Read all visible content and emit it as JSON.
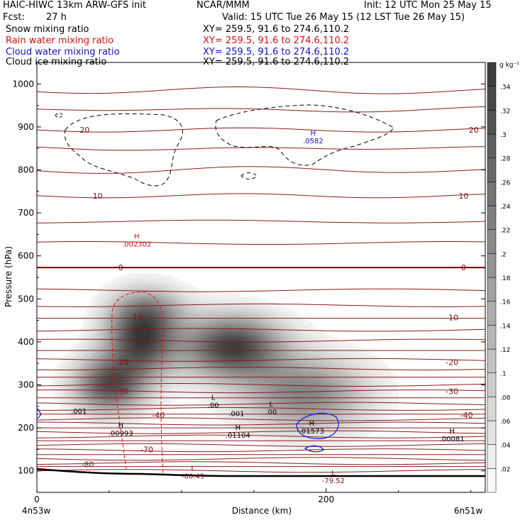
{
  "header": {
    "model": "HAIC-HIWC 13km ARW-GFS init",
    "org": "NCAR/MMM",
    "init": "Init: 12 UTC Mon 25 May 15",
    "fcst_label": "Fcst:",
    "fcst_value": "27 h",
    "valid": "Valid: 15 UTC Tue 26 May 15 (12 LST Tue 26 May 15)",
    "fields": [
      {
        "name": "Snow mixing ratio",
        "xy": "XY= 259.5, 91.6 to 274.6,110.2",
        "color": "#000000"
      },
      {
        "name": "Rain water mixing ratio",
        "xy": "XY= 259.5, 91.6 to 274.6,110.2",
        "color": "#dd1111"
      },
      {
        "name": "Cloud water mixing ratio",
        "xy": "XY= 259.5, 91.6 to 274.6,110.2",
        "color": "#1111cc"
      },
      {
        "name": "Cloud ice mixing ratio",
        "xy": "XY= 259.5, 91.6 to 274.6,110.2",
        "color": "#000000"
      }
    ]
  },
  "chart_data": {
    "type": "heatmap",
    "title": "HAIC-HIWC 13km ARW-GFS init",
    "xlabel": "Distance (km)",
    "ylabel": "Pressure (hPa)",
    "xlim": [
      0,
      310
    ],
    "ylim": [
      1050,
      50
    ],
    "x_ticks": [
      0,
      200
    ],
    "y_ticks": [
      100,
      200,
      300,
      400,
      500,
      600,
      700,
      800,
      900,
      1000
    ],
    "x_endpoint_labels": [
      "4n53w",
      "6n51w"
    ],
    "colorbar": {
      "unit": "g kg⁻¹",
      "ticks": [
        0.02,
        0.04,
        0.06,
        0.08,
        0.1,
        0.12,
        0.14,
        0.16,
        0.18,
        0.2,
        0.22,
        0.24,
        0.26,
        0.28,
        0.3,
        0.32,
        0.34
      ],
      "tick_labels": [
        ".02",
        ".04",
        ".06",
        ".08",
        ".1",
        ".12",
        ".14",
        ".16",
        ".18",
        ".2",
        ".22",
        ".24",
        ".26",
        ".28",
        ".3",
        ".32",
        ".34"
      ],
      "range": [
        0,
        0.36
      ]
    },
    "snow_blobs": [
      {
        "x": 50,
        "p": 300,
        "amp": 0.3,
        "sx": 17,
        "sp": 45
      },
      {
        "x": 72,
        "p": 410,
        "amp": 0.34,
        "sx": 17,
        "sp": 60
      },
      {
        "x": 135,
        "p": 390,
        "amp": 0.34,
        "sx": 24,
        "sp": 50
      },
      {
        "x": 185,
        "p": 280,
        "amp": 0.22,
        "sx": 30,
        "sp": 60
      },
      {
        "x": 80,
        "p": 480,
        "amp": 0.1,
        "sx": 18,
        "sp": 35
      }
    ],
    "temperature_isotherms": [
      {
        "label": "-80",
        "p": 115,
        "label_x": 35
      },
      {
        "label": "-70",
        "p": 150,
        "label_x": 76
      },
      {
        "label": "-40",
        "p": 230,
        "label_x": 84
      },
      {
        "label": "-40",
        "p": 230,
        "label_x": 297
      },
      {
        "label": "-30",
        "p": 285,
        "label_x": 59
      },
      {
        "label": "-30",
        "p": 285,
        "label_x": 287
      },
      {
        "label": "-20",
        "p": 353,
        "label_x": 59
      },
      {
        "label": "-20",
        "p": 353,
        "label_x": 287
      },
      {
        "label": "-10",
        "p": 457,
        "label_x": 69
      },
      {
        "label": "-10",
        "p": 457,
        "label_x": 287
      },
      {
        "label": "0",
        "p": 573,
        "label_x": 58
      },
      {
        "label": "0",
        "p": 573,
        "label_x": 295
      },
      {
        "label": "10",
        "p": 740,
        "label_x": 42
      },
      {
        "label": "10",
        "p": 740,
        "label_x": 295
      },
      {
        "label": "20",
        "p": 893,
        "label_x": 33
      },
      {
        "label": "20",
        "p": 893,
        "label_x": 302
      }
    ],
    "extrema": [
      {
        "kind": "L",
        "value": "-80.49",
        "x": 108,
        "p": 100,
        "color": "#7a1010"
      },
      {
        "kind": "L",
        "value": "-79.52",
        "x": 205,
        "p": 90,
        "color": "#7a1010"
      },
      {
        "kind": "H",
        "value": ".00993",
        "x": 58,
        "p": 200,
        "color": "#000000"
      },
      {
        "kind": "H",
        "value": ".01104",
        "x": 139,
        "p": 195,
        "color": "#000000"
      },
      {
        "kind": "H",
        "value": ".01573",
        "x": 190,
        "p": 205,
        "color": "#000000"
      },
      {
        "kind": "H",
        "value": ".00081",
        "x": 287,
        "p": 187,
        "color": "#000000"
      },
      {
        "kind": "L",
        "value": ".00",
        "x": 122,
        "p": 265,
        "color": "#000000"
      },
      {
        "kind": "L",
        "value": ".00",
        "x": 162,
        "p": 250,
        "color": "#000000"
      },
      {
        "kind": "H",
        "value": ".002302",
        "x": 69,
        "p": 640,
        "color": "#dd1111"
      },
      {
        "kind": "H",
        "value": ".0582",
        "x": 191,
        "p": 880,
        "color": "#1111cc"
      }
    ],
    "contour_labels": [
      {
        "text": ".001",
        "x": 29,
        "p": 233,
        "color": "#000000"
      },
      {
        "text": ".001",
        "x": 138,
        "p": 227,
        "color": "#000000"
      }
    ]
  }
}
